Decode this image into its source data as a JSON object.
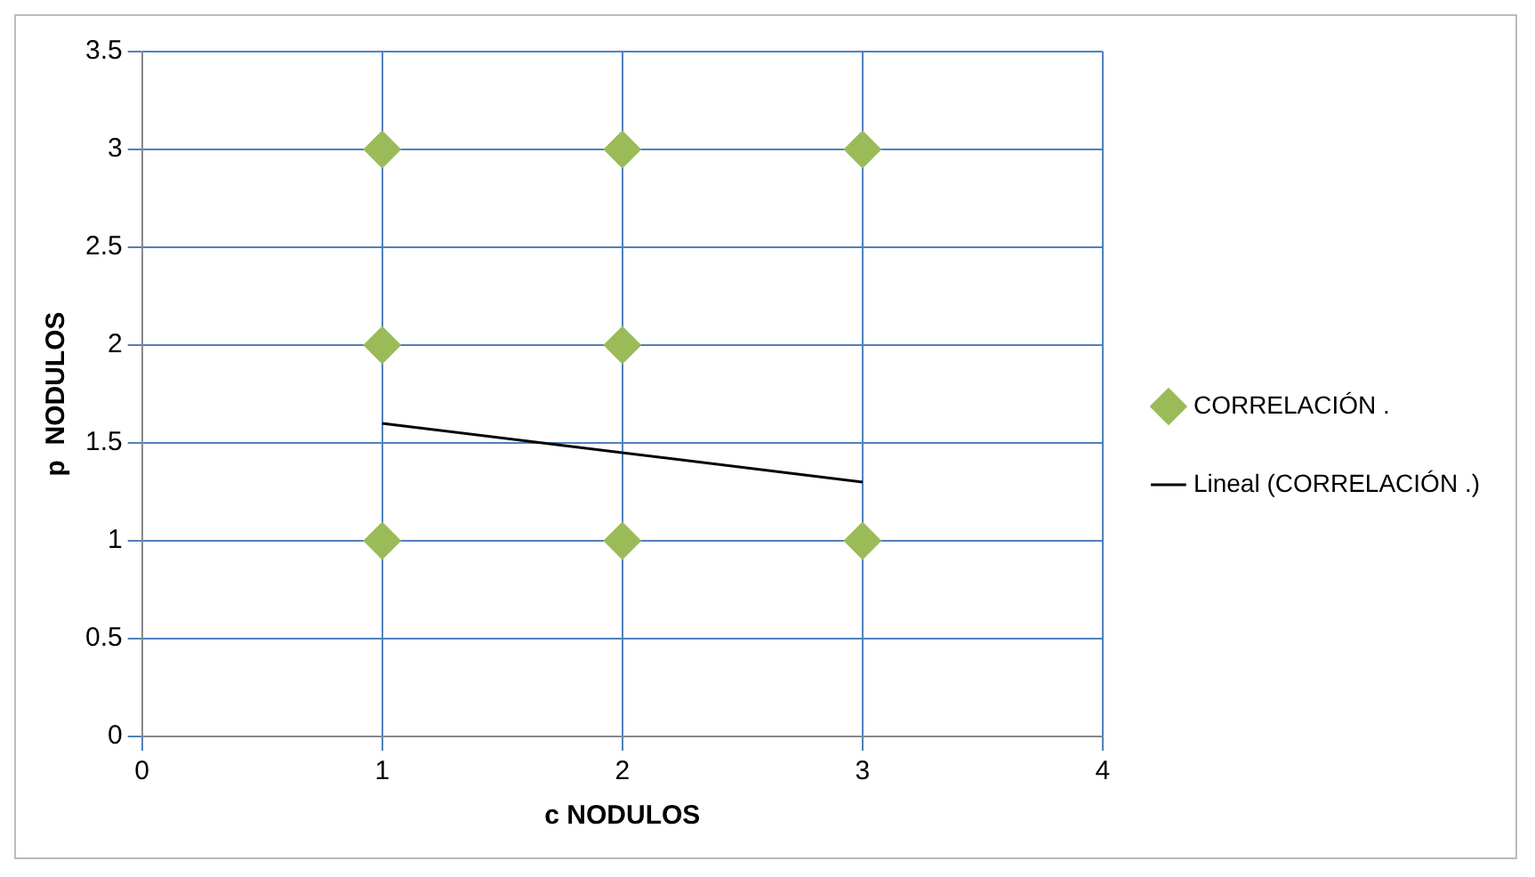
{
  "chart_data": {
    "type": "scatter",
    "xlabel": "c NODULOS",
    "ylabel": "p  NODULOS",
    "xlim": [
      0,
      4
    ],
    "xticks": [
      0,
      1,
      2,
      3,
      4
    ],
    "ylim": [
      0,
      3.5
    ],
    "yticks": [
      0,
      0.5,
      1,
      1.5,
      2,
      2.5,
      3,
      3.5
    ],
    "grid": true,
    "legend": "right",
    "marker": "diamond",
    "series": [
      {
        "name": "CORRELACIÓN .",
        "color": "#9bbb59",
        "x": [
          1,
          1,
          1,
          2,
          2,
          2,
          3,
          3
        ],
        "values": [
          1,
          2,
          3,
          1,
          2,
          3,
          1,
          3
        ]
      },
      {
        "name": "Lineal (CORRELACIÓN .)",
        "type": "line",
        "color": "#000000",
        "x": [
          1,
          3
        ],
        "values": [
          1.6,
          1.3
        ],
        "marker": "none",
        "line_style": "solid"
      }
    ]
  }
}
